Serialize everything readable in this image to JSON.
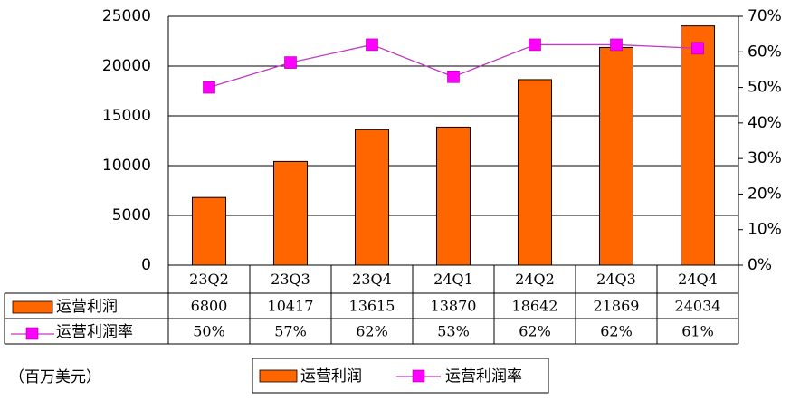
{
  "chart_data": {
    "type": "bar",
    "categories": [
      "23Q2",
      "23Q3",
      "23Q4",
      "24Q1",
      "24Q2",
      "24Q3",
      "24Q4"
    ],
    "series": [
      {
        "name": "运营利润",
        "type": "bar",
        "axis": "left",
        "color": "#ff6600",
        "values": [
          6800,
          10417,
          13615,
          13870,
          18642,
          21869,
          24034
        ]
      },
      {
        "name": "运营利润率",
        "type": "line",
        "axis": "right",
        "color": "#ff00ff",
        "line_color": "#c03cc0",
        "values": [
          50,
          57,
          62,
          53,
          62,
          62,
          61
        ],
        "labels": [
          "50%",
          "57%",
          "62%",
          "53%",
          "62%",
          "62%",
          "61%"
        ]
      }
    ],
    "ylim": [
      0,
      25000
    ],
    "yticks": [
      "0",
      "5000",
      "10000",
      "15000",
      "20000",
      "25000"
    ],
    "y2lim": [
      0,
      70
    ],
    "y2ticks": [
      "0%",
      "10%",
      "20%",
      "30%",
      "40%",
      "50%",
      "60%",
      "70%"
    ],
    "grid": true,
    "data_table": true,
    "legend_position": "bottom",
    "unit_note": "（百万美元）"
  }
}
